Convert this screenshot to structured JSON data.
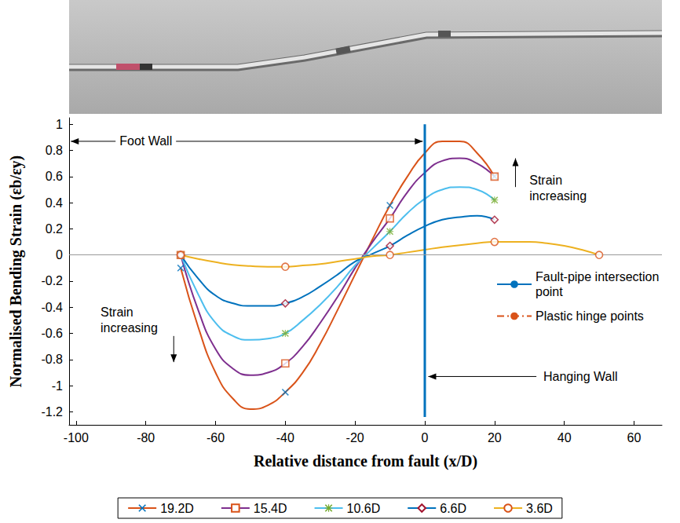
{
  "chart_data": {
    "type": "line",
    "x_label": "Relative distance from fault (x/D)",
    "y_label": "Normalised Bending Strain (εb/εy)",
    "xlim": [
      -102,
      68
    ],
    "xticks": [
      -100,
      -80,
      -60,
      -40,
      -20,
      0,
      20,
      40,
      60
    ],
    "ylim": [
      -1.3,
      1.05
    ],
    "yticks": [
      -1.2,
      -1,
      -0.8,
      -0.6,
      -0.4,
      -0.2,
      0,
      0.2,
      0.4,
      0.6,
      0.8,
      1
    ],
    "grid": false,
    "legend": "bottom",
    "hline": 0,
    "series": [
      {
        "name": "19.2D",
        "color": "#D95319",
        "x": [
          -70,
          -65,
          -60,
          -55,
          -50,
          -45,
          -40,
          -35,
          -30,
          -25,
          -20,
          -15,
          -10,
          -5,
          0,
          5,
          10,
          15,
          20
        ],
        "values": [
          -0.1,
          -0.55,
          -0.9,
          -1.1,
          -1.18,
          -1.15,
          -1.05,
          -0.9,
          -0.68,
          -0.42,
          -0.15,
          0.12,
          0.38,
          0.6,
          0.78,
          0.87,
          0.87,
          0.78,
          0.6
        ],
        "points": {
          "marker": "x",
          "color": "#0072BD",
          "x": [
            -70,
            -40,
            -10,
            20
          ],
          "values": [
            -0.1,
            -1.05,
            0.38,
            0.6
          ]
        }
      },
      {
        "name": "15.4D",
        "color": "#7E2F8E",
        "x": [
          -70,
          -65,
          -60,
          -55,
          -50,
          -45,
          -40,
          -35,
          -30,
          -25,
          -20,
          -15,
          -10,
          -5,
          0,
          5,
          10,
          15,
          20
        ],
        "values": [
          0,
          -0.42,
          -0.72,
          -0.87,
          -0.92,
          -0.9,
          -0.83,
          -0.7,
          -0.52,
          -0.32,
          -0.1,
          0.1,
          0.28,
          0.48,
          0.63,
          0.72,
          0.74,
          0.7,
          0.6
        ],
        "points": {
          "marker": "square",
          "color": "#D95319",
          "x": [
            -70,
            -40,
            -10,
            20
          ],
          "values": [
            0,
            -0.83,
            0.28,
            0.6
          ]
        }
      },
      {
        "name": "10.6D",
        "color": "#4DBEEE",
        "x": [
          -70,
          -65,
          -60,
          -55,
          -50,
          -45,
          -40,
          -35,
          -30,
          -25,
          -20,
          -15,
          -10,
          -5,
          0,
          5,
          10,
          15,
          20
        ],
        "values": [
          0,
          -0.3,
          -0.52,
          -0.62,
          -0.65,
          -0.64,
          -0.6,
          -0.5,
          -0.38,
          -0.24,
          -0.08,
          0.05,
          0.18,
          0.32,
          0.43,
          0.5,
          0.52,
          0.5,
          0.42
        ],
        "points": {
          "marker": "star",
          "color": "#77AC30",
          "x": [
            -70,
            -40,
            -10,
            20
          ],
          "values": [
            0,
            -0.6,
            0.18,
            0.42
          ]
        }
      },
      {
        "name": "6.6D",
        "color": "#0072BD",
        "x": [
          -70,
          -65,
          -60,
          -55,
          -50,
          -45,
          -40,
          -35,
          -30,
          -25,
          -20,
          -15,
          -10,
          -5,
          0,
          5,
          10,
          15,
          20
        ],
        "values": [
          0,
          -0.18,
          -0.31,
          -0.37,
          -0.39,
          -0.39,
          -0.37,
          -0.32,
          -0.24,
          -0.15,
          -0.05,
          0.01,
          0.07,
          0.15,
          0.22,
          0.27,
          0.29,
          0.3,
          0.27
        ],
        "points": {
          "marker": "diamond",
          "color": "#A2142F",
          "x": [
            -70,
            -40,
            -10,
            20
          ],
          "values": [
            0,
            -0.37,
            0.07,
            0.27
          ]
        }
      },
      {
        "name": "3.6D",
        "color": "#EDB120",
        "x": [
          -70,
          -65,
          -60,
          -55,
          -50,
          -45,
          -40,
          -35,
          -30,
          -25,
          -20,
          -15,
          -10,
          -5,
          0,
          5,
          10,
          15,
          20,
          25,
          30,
          35,
          40,
          45,
          50
        ],
        "values": [
          0,
          -0.03,
          -0.055,
          -0.075,
          -0.085,
          -0.09,
          -0.09,
          -0.08,
          -0.07,
          -0.05,
          -0.03,
          -0.01,
          0,
          0.02,
          0.04,
          0.06,
          0.075,
          0.09,
          0.1,
          0.1,
          0.1,
          0.09,
          0.07,
          0.04,
          0
        ],
        "points": {
          "marker": "circle",
          "color": "#D95319",
          "x": [
            -70,
            -40,
            -10,
            20,
            50
          ],
          "values": [
            0,
            -0.09,
            0,
            0.1,
            0
          ]
        }
      }
    ],
    "fault": {
      "name": "Fault-pipe intersection point",
      "color": "#0072BD",
      "x": 0,
      "y": [
        -1.24,
        1
      ]
    },
    "plastic_hinge": {
      "name": "Plastic hinge points",
      "color": "#D95319",
      "line_style": "dashdot"
    },
    "annotations": {
      "foot_wall": "Foot Wall",
      "hanging_wall": "Hanging Wall",
      "strain_up": "Strain increasing",
      "strain_down": "Strain increasing"
    }
  }
}
